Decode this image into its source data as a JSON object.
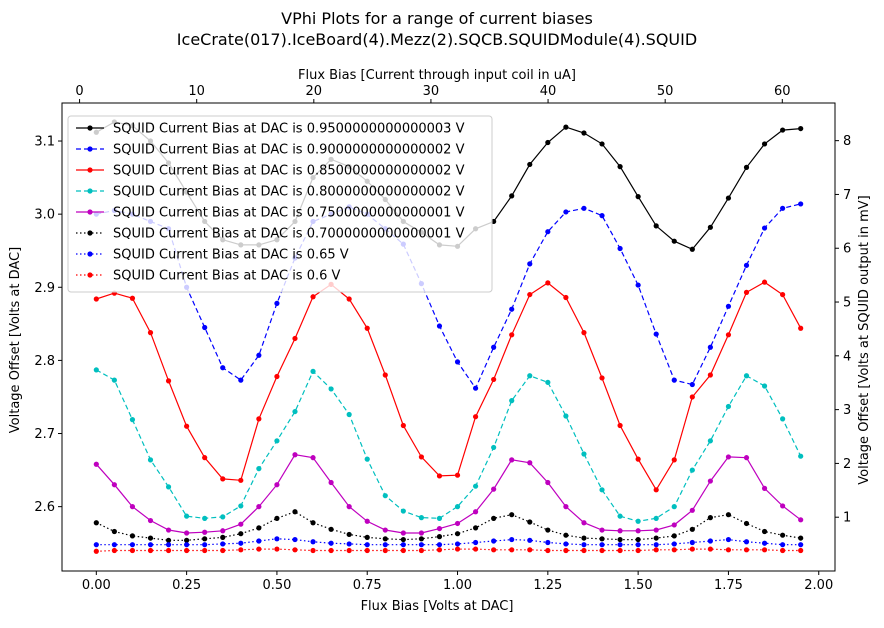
{
  "chart_data": {
    "type": "line",
    "title": "VPhi Plots for a range of current biases",
    "subtitle": "IceCrate(017).IceBoard(4).Mezz(2).SQCB.SQUIDModule(4).SQUID",
    "xlabel": "Flux Bias [Volts at DAC]",
    "ylabel": "Voltage Offset [Volts at DAC]",
    "x2label": "Flux Bias [Current through input coil in uA]",
    "y2label": "Voltage Offset [Volts at SQUID output in mV]",
    "xlim": [
      -0.095,
      2.045
    ],
    "ylim": [
      2.512,
      3.152
    ],
    "x2lim": [
      -1.5,
      64.5
    ],
    "y2lim": [
      0.0,
      8.7
    ],
    "xticks": [
      0.0,
      0.25,
      0.5,
      0.75,
      1.0,
      1.25,
      1.5,
      1.75,
      2.0
    ],
    "xtick_labels": [
      "0.00",
      "0.25",
      "0.50",
      "0.75",
      "1.00",
      "1.25",
      "1.50",
      "1.75",
      "2.00"
    ],
    "yticks": [
      2.6,
      2.7,
      2.8,
      2.9,
      3.0,
      3.1
    ],
    "ytick_labels": [
      "2.6",
      "2.7",
      "2.8",
      "2.9",
      "3.0",
      "3.1"
    ],
    "x2ticks": [
      0,
      10,
      20,
      30,
      40,
      50,
      60
    ],
    "x2tick_labels": [
      "0",
      "10",
      "20",
      "30",
      "40",
      "50",
      "60"
    ],
    "y2ticks": [
      1,
      2,
      3,
      4,
      5,
      6,
      7,
      8
    ],
    "y2tick_labels": [
      "1",
      "2",
      "3",
      "4",
      "5",
      "6",
      "7",
      "8"
    ],
    "grid": false,
    "legend_position": "top-left",
    "x": [
      0.0,
      0.05,
      0.1,
      0.15,
      0.2,
      0.25,
      0.3,
      0.35,
      0.4,
      0.45,
      0.5,
      0.55,
      0.6,
      0.65,
      0.7,
      0.75,
      0.8,
      0.85,
      0.9,
      0.95,
      1.0,
      1.05,
      1.1,
      1.15,
      1.2,
      1.25,
      1.3,
      1.35,
      1.4,
      1.45,
      1.5,
      1.55,
      1.6,
      1.65,
      1.7,
      1.75,
      1.8,
      1.85,
      1.9,
      1.95
    ],
    "series": [
      {
        "name": "SQUID Current Bias at DAC is 0.9500000000000003 V",
        "color": "#000000",
        "dash": "solid",
        "values": [
          3.112,
          3.126,
          3.121,
          3.1,
          3.07,
          3.03,
          2.99,
          2.965,
          2.958,
          2.958,
          2.965,
          2.99,
          3.05,
          3.075,
          3.065,
          3.045,
          3.02,
          2.99,
          2.975,
          2.958,
          2.956,
          2.98,
          2.99,
          3.025,
          3.068,
          3.098,
          3.119,
          3.111,
          3.096,
          3.065,
          3.024,
          2.984,
          2.963,
          2.952,
          2.982,
          3.022,
          3.064,
          3.096,
          3.115,
          3.117
        ]
      },
      {
        "name": "SQUID Current Bias at DAC is 0.9000000000000002 V",
        "color": "#0000ff",
        "dash": "dashed",
        "values": [
          3.0,
          3.005,
          3.0,
          2.99,
          2.98,
          2.9,
          2.845,
          2.79,
          2.773,
          2.807,
          2.878,
          2.94,
          2.99,
          3.0,
          3.01,
          3.0,
          2.98,
          2.959,
          2.905,
          2.847,
          2.798,
          2.762,
          2.818,
          2.87,
          2.932,
          2.976,
          3.003,
          3.008,
          2.998,
          2.953,
          2.903,
          2.836,
          2.773,
          2.767,
          2.818,
          2.874,
          2.93,
          2.981,
          3.008,
          3.014
        ]
      },
      {
        "name": "SQUID Current Bias at DAC is 0.8500000000000002 V",
        "color": "#ff0000",
        "dash": "solid",
        "values": [
          2.884,
          2.892,
          2.885,
          2.838,
          2.772,
          2.71,
          2.667,
          2.638,
          2.636,
          2.72,
          2.778,
          2.83,
          2.887,
          2.904,
          2.884,
          2.844,
          2.78,
          2.711,
          2.668,
          2.642,
          2.643,
          2.723,
          2.774,
          2.835,
          2.89,
          2.906,
          2.886,
          2.838,
          2.776,
          2.711,
          2.665,
          2.623,
          2.664,
          2.75,
          2.78,
          2.835,
          2.893,
          2.907,
          2.89,
          2.844
        ]
      },
      {
        "name": "SQUID Current Bias at DAC is 0.8000000000000002 V",
        "color": "#00bfbf",
        "dash": "dashed",
        "values": [
          2.787,
          2.773,
          2.719,
          2.664,
          2.627,
          2.587,
          2.584,
          2.586,
          2.601,
          2.652,
          2.69,
          2.73,
          2.785,
          2.761,
          2.726,
          2.665,
          2.615,
          2.594,
          2.585,
          2.584,
          2.6,
          2.628,
          2.681,
          2.745,
          2.779,
          2.77,
          2.724,
          2.672,
          2.623,
          2.587,
          2.58,
          2.584,
          2.6,
          2.65,
          2.69,
          2.737,
          2.779,
          2.765,
          2.72,
          2.669
        ]
      },
      {
        "name": "SQUID Current Bias at DAC is 0.7500000000000001 V",
        "color": "#bf00bf",
        "dash": "solid",
        "values": [
          2.658,
          2.63,
          2.6,
          2.581,
          2.568,
          2.564,
          2.565,
          2.567,
          2.576,
          2.6,
          2.63,
          2.671,
          2.667,
          2.633,
          2.6,
          2.58,
          2.568,
          2.564,
          2.564,
          2.57,
          2.577,
          2.593,
          2.624,
          2.664,
          2.66,
          2.633,
          2.6,
          2.578,
          2.568,
          2.567,
          2.567,
          2.568,
          2.575,
          2.595,
          2.635,
          2.668,
          2.667,
          2.625,
          2.601,
          2.582
        ]
      },
      {
        "name": "SQUID Current Bias at DAC is 0.7000000000000001 V",
        "color": "#000000",
        "dash": "dotted",
        "values": [
          2.578,
          2.566,
          2.56,
          2.557,
          2.554,
          2.554,
          2.556,
          2.558,
          2.563,
          2.571,
          2.584,
          2.593,
          2.578,
          2.569,
          2.562,
          2.558,
          2.556,
          2.555,
          2.556,
          2.559,
          2.563,
          2.571,
          2.584,
          2.589,
          2.579,
          2.568,
          2.561,
          2.557,
          2.556,
          2.555,
          2.555,
          2.557,
          2.56,
          2.569,
          2.585,
          2.589,
          2.577,
          2.566,
          2.561,
          2.557
        ]
      },
      {
        "name": "SQUID Current Bias at DAC is 0.65 V",
        "color": "#0000ff",
        "dash": "dotted",
        "values": [
          2.548,
          2.548,
          2.548,
          2.548,
          2.548,
          2.548,
          2.548,
          2.549,
          2.55,
          2.553,
          2.556,
          2.555,
          2.552,
          2.55,
          2.549,
          2.548,
          2.548,
          2.548,
          2.548,
          2.548,
          2.549,
          2.551,
          2.553,
          2.555,
          2.554,
          2.551,
          2.549,
          2.548,
          2.548,
          2.548,
          2.548,
          2.548,
          2.549,
          2.551,
          2.553,
          2.555,
          2.552,
          2.55,
          2.548,
          2.548
        ]
      },
      {
        "name": "SQUID Current Bias at DAC is 0.6 V",
        "color": "#ff0000",
        "dash": "dotted",
        "values": [
          2.539,
          2.54,
          2.54,
          2.54,
          2.54,
          2.54,
          2.54,
          2.54,
          2.541,
          2.542,
          2.542,
          2.541,
          2.54,
          2.54,
          2.54,
          2.54,
          2.54,
          2.54,
          2.54,
          2.541,
          2.542,
          2.542,
          2.541,
          2.541,
          2.541,
          2.54,
          2.54,
          2.54,
          2.54,
          2.54,
          2.54,
          2.541,
          2.541,
          2.542,
          2.542,
          2.541,
          2.541,
          2.541,
          2.54,
          2.54
        ]
      }
    ]
  }
}
